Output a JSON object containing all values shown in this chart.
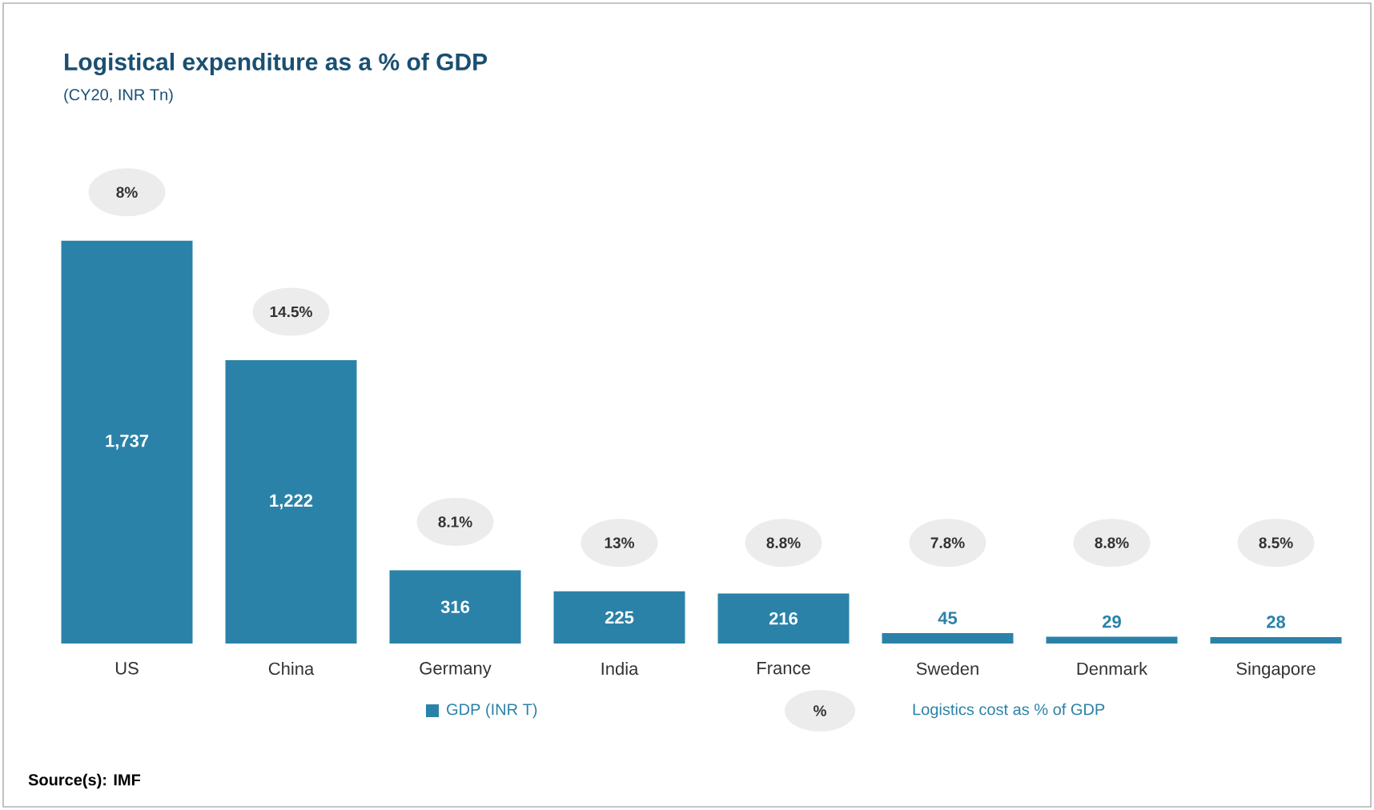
{
  "chart_data": {
    "type": "bar",
    "title": "Logistical expenditure as a % of GDP",
    "subtitle": "(CY20, INR Tn)",
    "categories": [
      "US",
      "China",
      "Germany",
      "India",
      "France",
      "Sweden",
      "Denmark",
      "Singapore"
    ],
    "series": [
      {
        "name": "GDP (INR T)",
        "color": "#2b82a8",
        "values": [
          1737,
          1222,
          316,
          225,
          216,
          45,
          29,
          28
        ],
        "value_labels": [
          "1,737",
          "1,222",
          "316",
          "225",
          "216",
          "45",
          "29",
          "28"
        ]
      }
    ],
    "annotations": [
      "8%",
      "14.5%",
      "8.1%",
      "13%",
      "8.8%",
      "7.8%",
      "8.8%",
      "8.5%",
      "%",
      "Logistics cost as % of GDP",
      "Source(s): IMF"
    ],
    "legend": "bottom"
  }
}
